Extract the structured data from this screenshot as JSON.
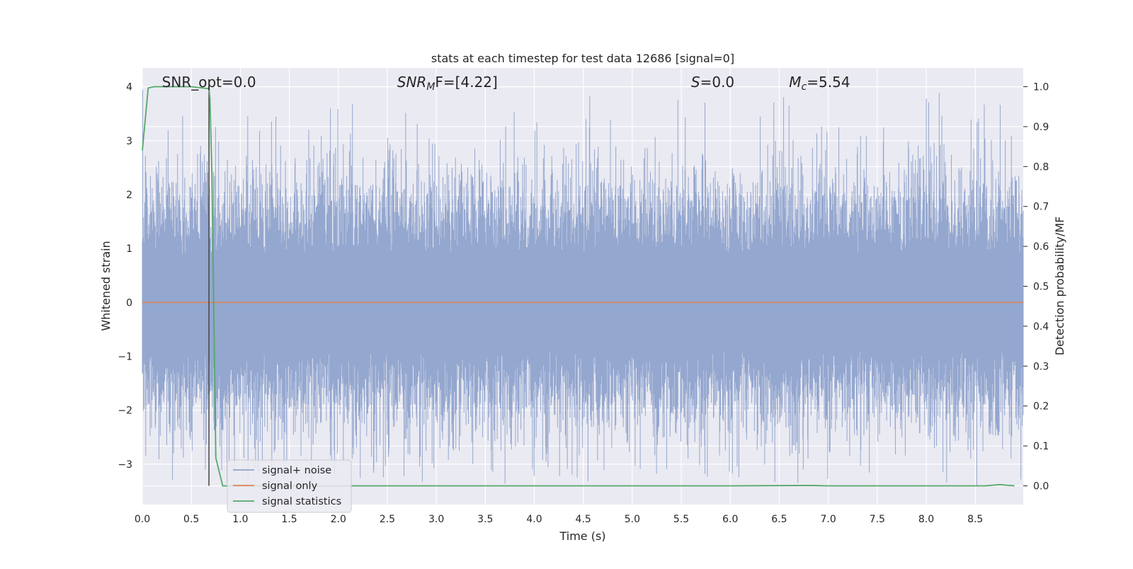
{
  "chart_data": {
    "type": "line",
    "title": "stats at each timestep for test data 12686 [signal=0]",
    "xlabel": "Time (s)",
    "ylabel": "Whitened strain",
    "y2label": "Detection probability/MF",
    "xlim": [
      0.0,
      8.99
    ],
    "ylim": [
      -3.75,
      4.35
    ],
    "y2lim": [
      -0.047,
      1.047
    ],
    "x_ticks": [
      "0.0",
      "0.5",
      "1.0",
      "1.5",
      "2.0",
      "2.5",
      "3.0",
      "3.5",
      "4.0",
      "4.5",
      "5.0",
      "5.5",
      "6.0",
      "6.5",
      "7.0",
      "7.5",
      "8.0",
      "8.5"
    ],
    "x_tick_values": [
      0,
      0.5,
      1,
      1.5,
      2,
      2.5,
      3,
      3.5,
      4,
      4.5,
      5,
      5.5,
      6,
      6.5,
      7,
      7.5,
      8,
      8.5
    ],
    "y_ticks": [
      "−3",
      "−2",
      "−1",
      "0",
      "1",
      "2",
      "3",
      "4"
    ],
    "y_tick_values": [
      -3,
      -2,
      -1,
      0,
      1,
      2,
      3,
      4
    ],
    "y2_ticks": [
      "0.0",
      "0.1",
      "0.2",
      "0.3",
      "0.4",
      "0.5",
      "0.6",
      "0.7",
      "0.8",
      "0.9",
      "1.0"
    ],
    "y2_tick_values": [
      0,
      0.1,
      0.2,
      0.3,
      0.4,
      0.5,
      0.6,
      0.7,
      0.8,
      0.9,
      1.0
    ],
    "grid": true,
    "legend_position": "lower-left",
    "series": [
      {
        "name": "signal+ noise",
        "color": "#8fa3cc",
        "kind": "noise",
        "duration": 8.99,
        "peak_max": 4.0,
        "peak_min": -3.4
      },
      {
        "name": "signal only",
        "color": "#dd8452",
        "x": [
          0,
          8.99
        ],
        "y": [
          0,
          0
        ]
      },
      {
        "name": "signal statistics",
        "color": "#55a868",
        "axis": "right",
        "x": [
          0.0,
          0.06,
          0.12,
          0.3,
          0.5,
          0.68,
          0.69,
          0.71,
          0.75,
          0.82,
          1.0,
          2.0,
          4.0,
          6.0,
          6.8,
          7.0,
          8.0,
          8.6,
          8.75,
          8.9
        ],
        "y": [
          0.84,
          0.997,
          1.0,
          1.0,
          1.0,
          0.995,
          0.97,
          0.78,
          0.07,
          0.0,
          0.0,
          0.0,
          0.0,
          0.0,
          0.001,
          0.0,
          0.0,
          0.0,
          0.003,
          0.0
        ]
      }
    ],
    "marker_line_x": 0.68,
    "annotations": [
      {
        "text": "SNR_opt=0.0",
        "x": 0.2
      },
      {
        "text": "SNR_MF=[4.22]",
        "x": 2.6
      },
      {
        "text": "S=0.0",
        "x": 5.6
      },
      {
        "text": "M_c=5.54",
        "x": 6.6
      }
    ]
  }
}
